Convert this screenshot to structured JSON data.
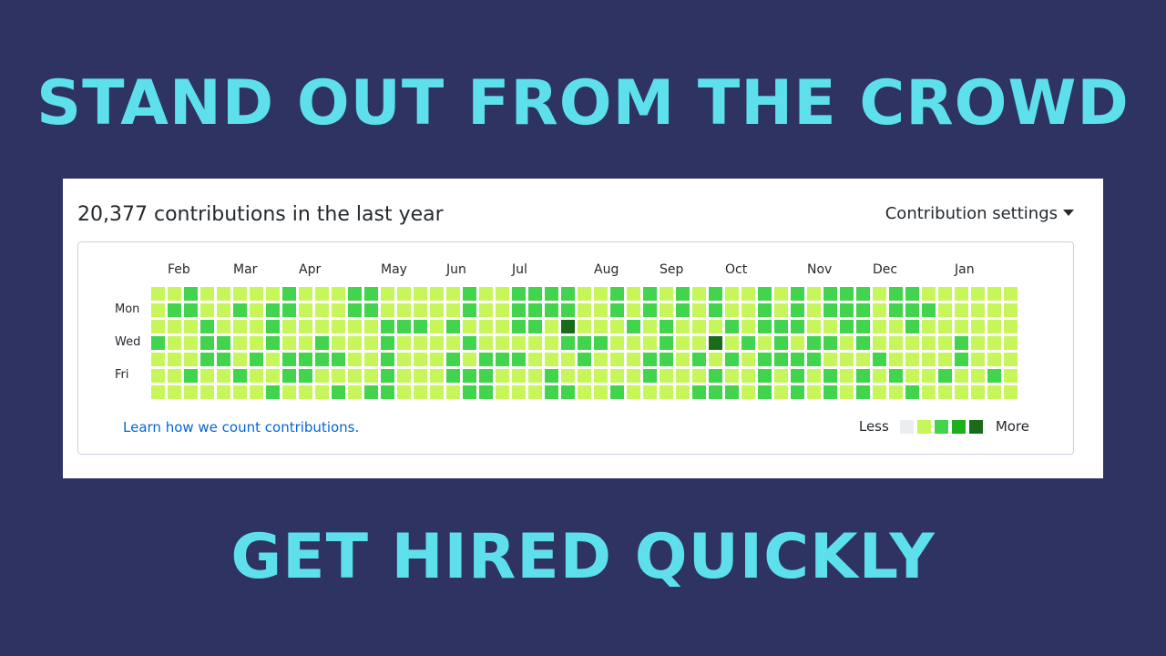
{
  "headline_top": "STAND OUT FROM THE CROWD",
  "headline_bottom": "GET HIRED QUICKLY",
  "card": {
    "title": "20,377 contributions in the last year",
    "settings_label": "Contribution settings"
  },
  "calendar": {
    "months": [
      {
        "label": "Feb",
        "week": 1
      },
      {
        "label": "Mar",
        "week": 5
      },
      {
        "label": "Apr",
        "week": 9
      },
      {
        "label": "May",
        "week": 14
      },
      {
        "label": "Jun",
        "week": 18
      },
      {
        "label": "Jul",
        "week": 22
      },
      {
        "label": "Aug",
        "week": 27
      },
      {
        "label": "Sep",
        "week": 31
      },
      {
        "label": "Oct",
        "week": 35
      },
      {
        "label": "Nov",
        "week": 40
      },
      {
        "label": "Dec",
        "week": 44
      },
      {
        "label": "Jan",
        "week": 49
      }
    ],
    "weekdays": [
      {
        "label": "Mon",
        "day": 1
      },
      {
        "label": "Wed",
        "day": 3
      },
      {
        "label": "Fri",
        "day": 5
      }
    ],
    "levels": [
      "11211111211122111112112222112121212112121222122111111",
      "12211212211122111112112222112121212112121222122211111",
      "11121112111111222121112214111212111212221122112111111",
      "21122112112111211112111112221112114121212212111112111",
      "11122121222211211121222111211122121212222111211112111",
      "11211211221111211122211121111121112112121212121121121",
      "11111112111212211112211122112111122212121212112111111"
    ],
    "colors": [
      "#ebedf0",
      "#c6f65a",
      "#42d44c",
      "#1cb11c",
      "#1a6b1a"
    ]
  },
  "footer": {
    "learn_link": "Learn how we count contributions.",
    "legend_less": "Less",
    "legend_more": "More",
    "legend_colors": [
      "#ebedf0",
      "#c6f65a",
      "#42d44c",
      "#1cb11c",
      "#1a6b1a"
    ]
  }
}
